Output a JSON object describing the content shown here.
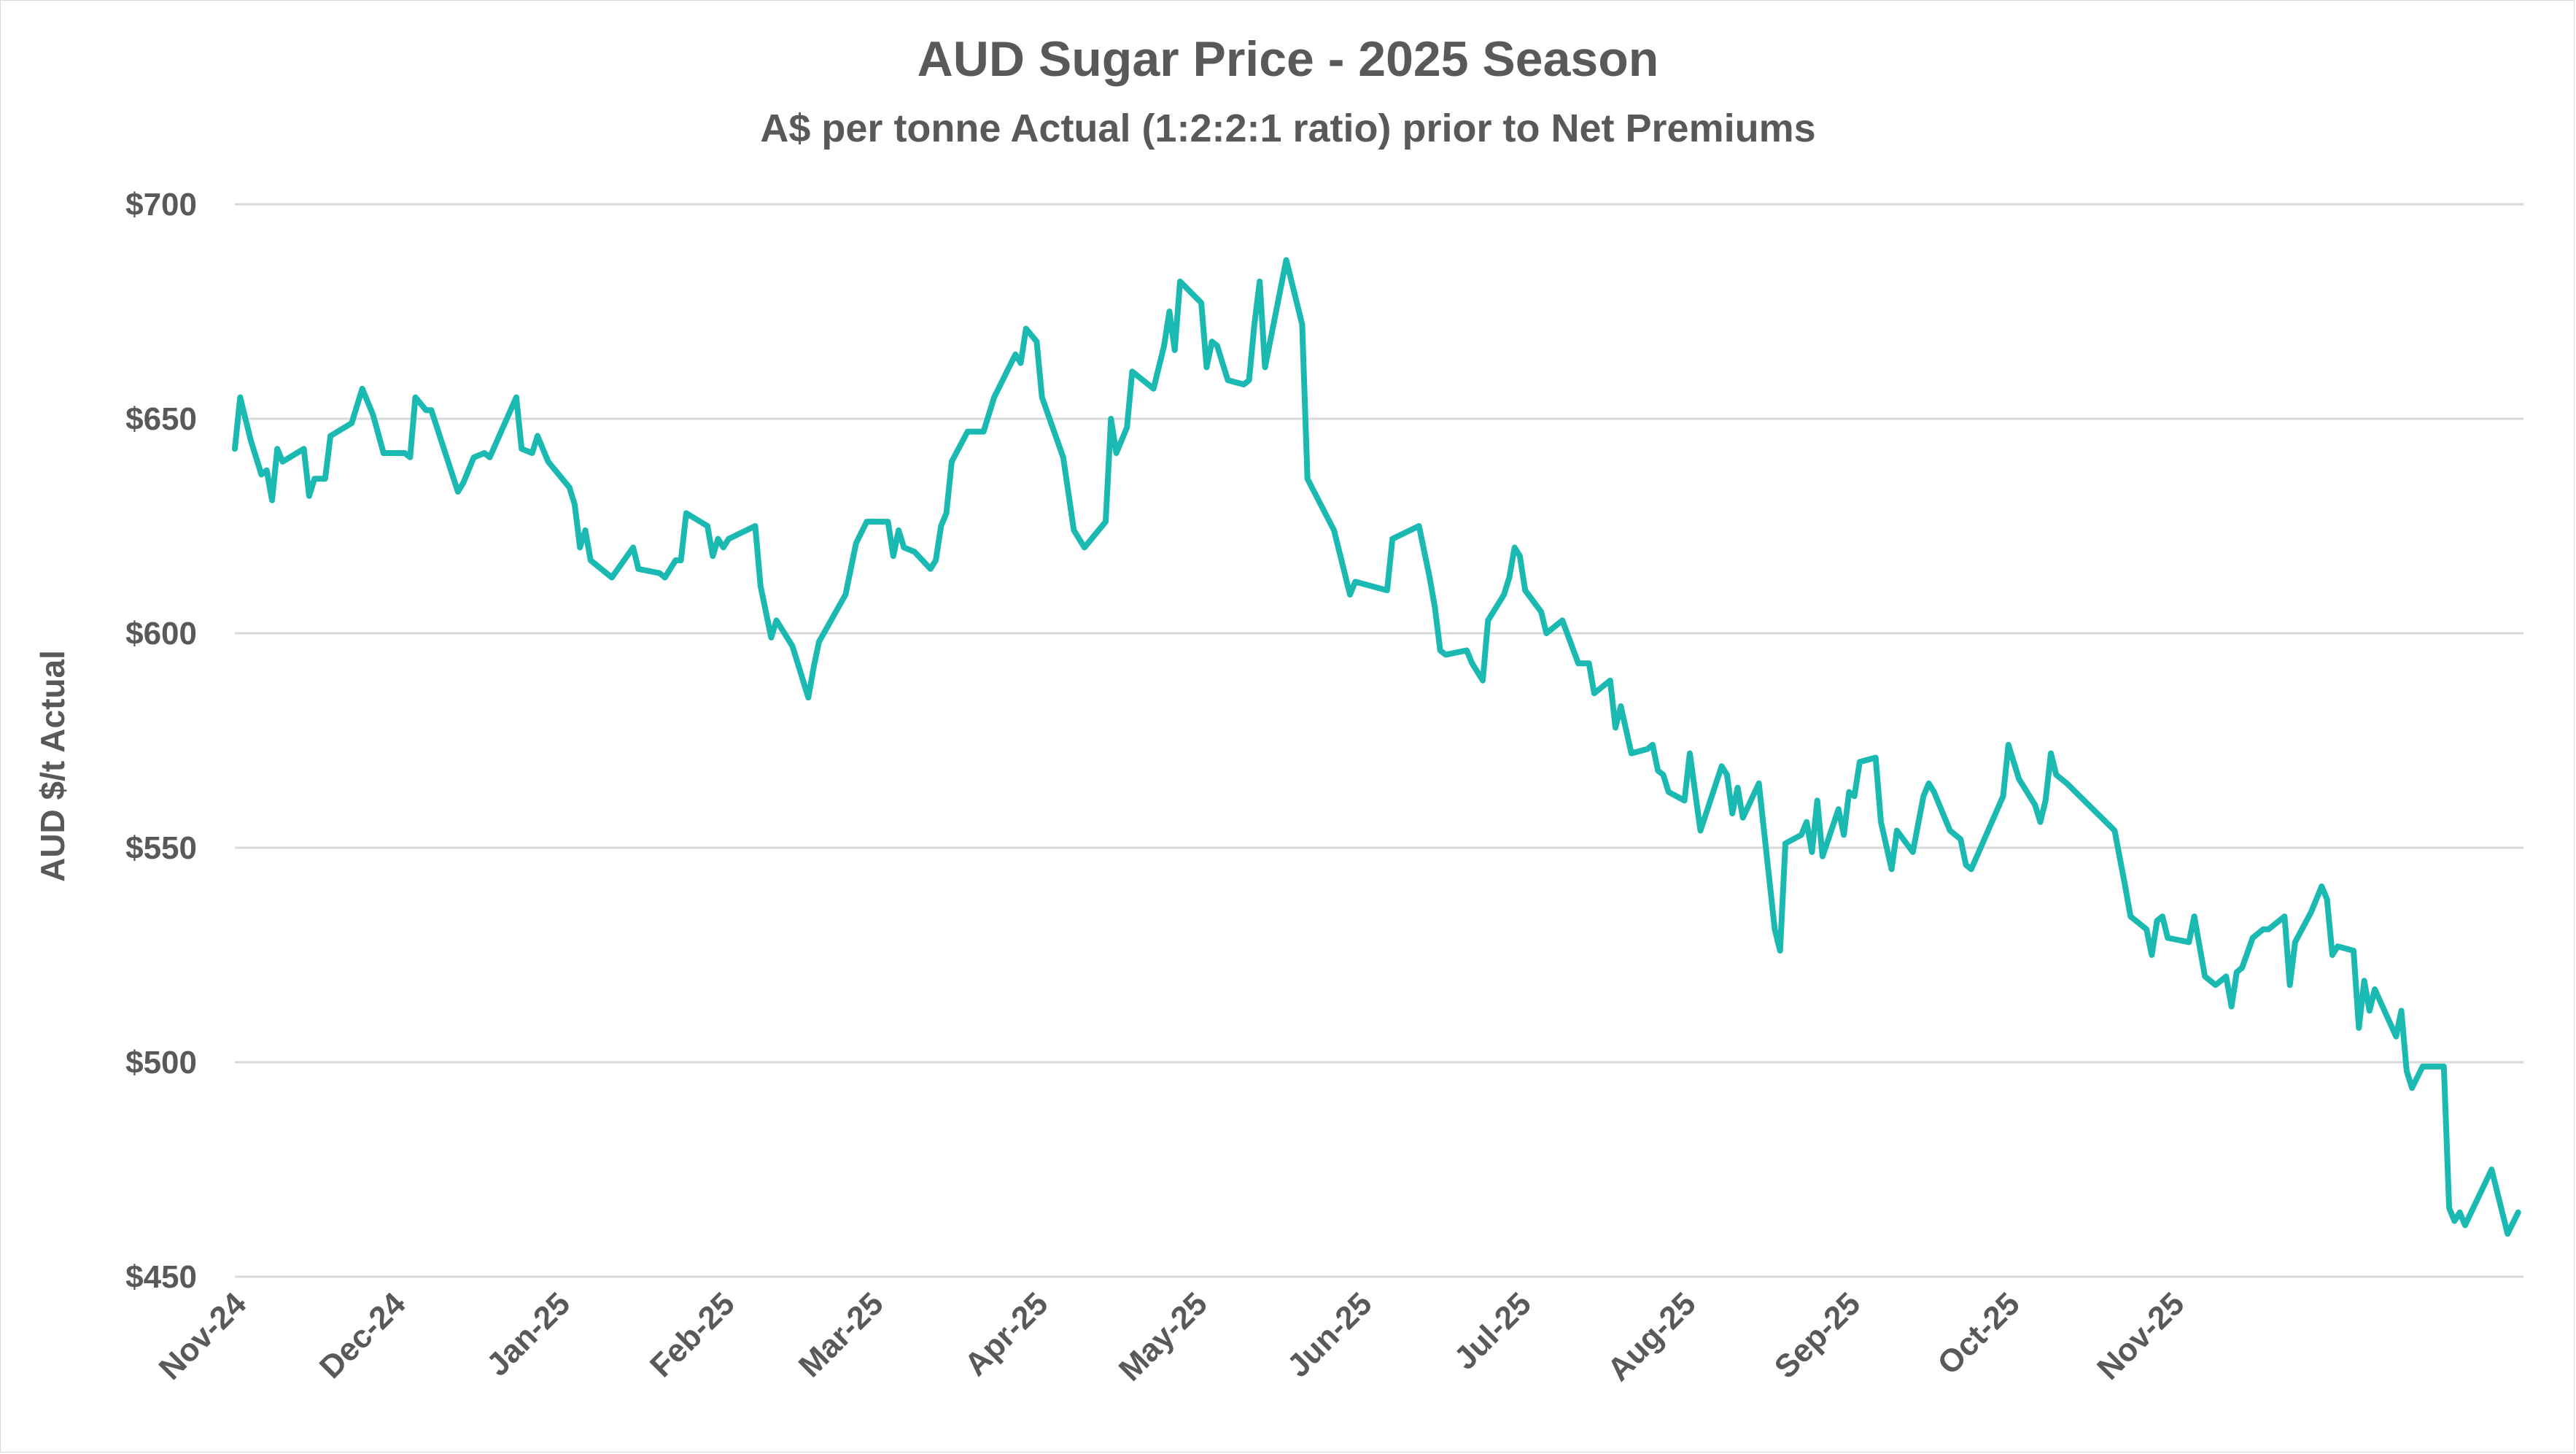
{
  "chart_data": {
    "type": "line",
    "title": "AUD Sugar Price - 2025 Season",
    "subtitle": "A$ per tonne Actual (1:2:2:1 ratio) prior to Net Premiums",
    "xlabel": "",
    "ylabel": "AUD $/t Actual",
    "ylim": [
      450,
      700
    ],
    "y_ticks": [
      "$450",
      "$500",
      "$550",
      "$600",
      "$650",
      "$700"
    ],
    "y_tick_values": [
      450,
      500,
      550,
      600,
      650,
      700
    ],
    "x_ticks": [
      "Nov-24",
      "Dec-24",
      "Jan-25",
      "Feb-25",
      "Mar-25",
      "Apr-25",
      "May-25",
      "Jun-25",
      "Jul-25",
      "Aug-25",
      "Sep-25",
      "Oct-25",
      "Nov-25"
    ],
    "grid": "horizontal",
    "line_color": "#1ab9b2",
    "series": [
      {
        "values": [
          [
            "2024-11-01",
            643
          ],
          [
            "2024-11-02",
            655
          ],
          [
            "2024-11-04",
            645
          ],
          [
            "2024-11-06",
            637
          ],
          [
            "2024-11-07",
            638
          ],
          [
            "2024-11-08",
            631
          ],
          [
            "2024-11-09",
            643
          ],
          [
            "2024-11-10",
            640
          ],
          [
            "2024-11-14",
            643
          ],
          [
            "2024-11-15",
            632
          ],
          [
            "2024-11-16",
            636
          ],
          [
            "2024-11-18",
            636
          ],
          [
            "2024-11-19",
            646
          ],
          [
            "2024-11-23",
            649
          ],
          [
            "2024-11-25",
            657
          ],
          [
            "2024-11-27",
            651
          ],
          [
            "2024-11-29",
            642
          ],
          [
            "2024-12-03",
            642
          ],
          [
            "2024-12-04",
            641
          ],
          [
            "2024-12-05",
            655
          ],
          [
            "2024-12-07",
            652
          ],
          [
            "2024-12-08",
            652
          ],
          [
            "2024-12-13",
            633
          ],
          [
            "2024-12-14",
            635
          ],
          [
            "2024-12-16",
            641
          ],
          [
            "2024-12-18",
            642
          ],
          [
            "2024-12-19",
            641
          ],
          [
            "2024-12-24",
            655
          ],
          [
            "2024-12-25",
            643
          ],
          [
            "2024-12-27",
            642
          ],
          [
            "2024-12-28",
            646
          ],
          [
            "2024-12-30",
            640
          ],
          [
            "2025-01-03",
            634
          ],
          [
            "2025-01-04",
            630
          ],
          [
            "2025-01-05",
            620
          ],
          [
            "2025-01-06",
            624
          ],
          [
            "2025-01-07",
            617
          ],
          [
            "2025-01-11",
            613
          ],
          [
            "2025-01-15",
            620
          ],
          [
            "2025-01-16",
            615
          ],
          [
            "2025-01-20",
            614
          ],
          [
            "2025-01-21",
            613
          ],
          [
            "2025-01-23",
            617
          ],
          [
            "2025-01-24",
            617
          ],
          [
            "2025-01-25",
            628
          ],
          [
            "2025-01-29",
            625
          ],
          [
            "2025-01-30",
            618
          ],
          [
            "2025-01-31",
            622
          ],
          [
            "2025-02-01",
            620
          ],
          [
            "2025-02-02",
            622
          ],
          [
            "2025-02-07",
            625
          ],
          [
            "2025-02-08",
            611
          ],
          [
            "2025-02-10",
            599
          ],
          [
            "2025-02-11",
            603
          ],
          [
            "2025-02-14",
            597
          ],
          [
            "2025-02-17",
            585
          ],
          [
            "2025-02-18",
            592
          ],
          [
            "2025-02-19",
            598
          ],
          [
            "2025-02-24",
            609
          ],
          [
            "2025-02-26",
            621
          ],
          [
            "2025-02-28",
            626
          ],
          [
            "2025-03-04",
            626
          ],
          [
            "2025-03-05",
            618
          ],
          [
            "2025-03-06",
            624
          ],
          [
            "2025-03-07",
            620
          ],
          [
            "2025-03-09",
            619
          ],
          [
            "2025-03-12",
            615
          ],
          [
            "2025-03-13",
            617
          ],
          [
            "2025-03-14",
            625
          ],
          [
            "2025-03-15",
            628
          ],
          [
            "2025-03-16",
            640
          ],
          [
            "2025-03-19",
            647
          ],
          [
            "2025-03-22",
            647
          ],
          [
            "2025-03-24",
            655
          ],
          [
            "2025-03-28",
            665
          ],
          [
            "2025-03-29",
            663
          ],
          [
            "2025-03-30",
            671
          ],
          [
            "2025-04-01",
            668
          ],
          [
            "2025-04-02",
            655
          ],
          [
            "2025-04-06",
            641
          ],
          [
            "2025-04-08",
            624
          ],
          [
            "2025-04-10",
            620
          ],
          [
            "2025-04-14",
            626
          ],
          [
            "2025-04-15",
            650
          ],
          [
            "2025-04-16",
            642
          ],
          [
            "2025-04-18",
            648
          ],
          [
            "2025-04-19",
            661
          ],
          [
            "2025-04-23",
            657
          ],
          [
            "2025-04-25",
            667
          ],
          [
            "2025-04-26",
            675
          ],
          [
            "2025-04-27",
            666
          ],
          [
            "2025-04-28",
            682
          ],
          [
            "2025-05-02",
            677
          ],
          [
            "2025-05-03",
            662
          ],
          [
            "2025-05-04",
            668
          ],
          [
            "2025-05-05",
            667
          ],
          [
            "2025-05-07",
            659
          ],
          [
            "2025-05-10",
            658
          ],
          [
            "2025-05-11",
            659
          ],
          [
            "2025-05-12",
            672
          ],
          [
            "2025-05-13",
            682
          ],
          [
            "2025-05-14",
            662
          ],
          [
            "2025-05-18",
            687
          ],
          [
            "2025-05-21",
            672
          ],
          [
            "2025-05-22",
            636
          ],
          [
            "2025-05-27",
            624
          ],
          [
            "2025-05-28",
            619
          ],
          [
            "2025-05-30",
            609
          ],
          [
            "2025-05-31",
            612
          ],
          [
            "2025-06-06",
            610
          ],
          [
            "2025-06-07",
            622
          ],
          [
            "2025-06-12",
            625
          ],
          [
            "2025-06-14",
            613
          ],
          [
            "2025-06-15",
            606
          ],
          [
            "2025-06-16",
            596
          ],
          [
            "2025-06-17",
            595
          ],
          [
            "2025-06-21",
            596
          ],
          [
            "2025-06-22",
            593
          ],
          [
            "2025-06-24",
            589
          ],
          [
            "2025-06-25",
            603
          ],
          [
            "2025-06-28",
            609
          ],
          [
            "2025-06-29",
            613
          ],
          [
            "2025-06-30",
            620
          ],
          [
            "2025-07-01",
            618
          ],
          [
            "2025-07-02",
            610
          ],
          [
            "2025-07-05",
            605
          ],
          [
            "2025-07-06",
            600
          ],
          [
            "2025-07-09",
            603
          ],
          [
            "2025-07-12",
            593
          ],
          [
            "2025-07-14",
            593
          ],
          [
            "2025-07-15",
            586
          ],
          [
            "2025-07-18",
            589
          ],
          [
            "2025-07-19",
            578
          ],
          [
            "2025-07-20",
            583
          ],
          [
            "2025-07-22",
            572
          ],
          [
            "2025-07-25",
            573
          ],
          [
            "2025-07-26",
            574
          ],
          [
            "2025-07-27",
            568
          ],
          [
            "2025-07-28",
            567
          ],
          [
            "2025-07-29",
            563
          ],
          [
            "2025-08-01",
            561
          ],
          [
            "2025-08-02",
            572
          ],
          [
            "2025-08-04",
            554
          ],
          [
            "2025-08-08",
            569
          ],
          [
            "2025-08-09",
            567
          ],
          [
            "2025-08-10",
            558
          ],
          [
            "2025-08-11",
            564
          ],
          [
            "2025-08-12",
            557
          ],
          [
            "2025-08-15",
            565
          ],
          [
            "2025-08-18",
            531
          ],
          [
            "2025-08-19",
            526
          ],
          [
            "2025-08-20",
            551
          ],
          [
            "2025-08-23",
            553
          ],
          [
            "2025-08-24",
            556
          ],
          [
            "2025-08-25",
            549
          ],
          [
            "2025-08-26",
            561
          ],
          [
            "2025-08-27",
            548
          ],
          [
            "2025-08-30",
            559
          ],
          [
            "2025-08-31",
            553
          ],
          [
            "2025-09-01",
            563
          ],
          [
            "2025-09-02",
            562
          ],
          [
            "2025-09-03",
            570
          ],
          [
            "2025-09-06",
            571
          ],
          [
            "2025-09-07",
            556
          ],
          [
            "2025-09-09",
            545
          ],
          [
            "2025-09-10",
            554
          ],
          [
            "2025-09-13",
            549
          ],
          [
            "2025-09-15",
            562
          ],
          [
            "2025-09-16",
            565
          ],
          [
            "2025-09-17",
            563
          ],
          [
            "2025-09-20",
            554
          ],
          [
            "2025-09-22",
            552
          ],
          [
            "2025-09-23",
            546
          ],
          [
            "2025-09-24",
            545
          ],
          [
            "2025-09-30",
            562
          ],
          [
            "2025-10-01",
            574
          ],
          [
            "2025-10-03",
            566
          ],
          [
            "2025-10-06",
            560
          ],
          [
            "2025-10-07",
            556
          ],
          [
            "2025-10-08",
            561
          ],
          [
            "2025-10-09",
            572
          ],
          [
            "2025-10-10",
            567
          ],
          [
            "2025-10-12",
            565
          ],
          [
            "2025-10-21",
            554
          ],
          [
            "2025-10-23",
            541
          ],
          [
            "2025-10-24",
            534
          ],
          [
            "2025-10-27",
            531
          ],
          [
            "2025-10-28",
            525
          ],
          [
            "2025-10-29",
            533
          ],
          [
            "2025-10-30",
            534
          ],
          [
            "2025-10-31",
            529
          ],
          [
            "2025-11-04",
            528
          ],
          [
            "2025-11-05",
            534
          ],
          [
            "2025-11-07",
            520
          ],
          [
            "2025-11-09",
            518
          ],
          [
            "2025-11-11",
            520
          ],
          [
            "2025-11-12",
            513
          ],
          [
            "2025-11-13",
            521
          ],
          [
            "2025-11-14",
            522
          ],
          [
            "2025-11-16",
            529
          ],
          [
            "2025-11-18",
            531
          ],
          [
            "2025-11-19",
            531
          ],
          [
            "2025-11-21",
            533
          ],
          [
            "2025-11-22",
            534
          ],
          [
            "2025-11-23",
            518
          ],
          [
            "2025-11-24",
            528
          ],
          [
            "2025-11-27",
            535
          ],
          [
            "2025-11-29",
            541
          ],
          [
            "2025-11-30",
            538
          ],
          [
            "2025-12-01",
            525
          ],
          [
            "2025-12-02",
            527
          ],
          [
            "2025-12-05",
            526
          ],
          [
            "2025-12-06",
            508
          ],
          [
            "2025-12-07",
            519
          ],
          [
            "2025-12-08",
            512
          ],
          [
            "2025-12-09",
            517
          ],
          [
            "2025-12-13",
            506
          ],
          [
            "2025-12-14",
            512
          ],
          [
            "2025-12-15",
            498
          ],
          [
            "2025-12-16",
            494
          ],
          [
            "2025-12-18",
            499
          ],
          [
            "2025-12-22",
            499
          ],
          [
            "2025-12-23",
            466
          ],
          [
            "2025-12-24",
            463
          ],
          [
            "2025-12-25",
            465
          ],
          [
            "2025-12-26",
            462
          ],
          [
            "2025-12-31",
            475
          ],
          [
            "2026-01-02",
            465
          ],
          [
            "2026-01-03",
            460
          ],
          [
            "2026-01-05",
            465
          ]
        ]
      }
    ]
  }
}
